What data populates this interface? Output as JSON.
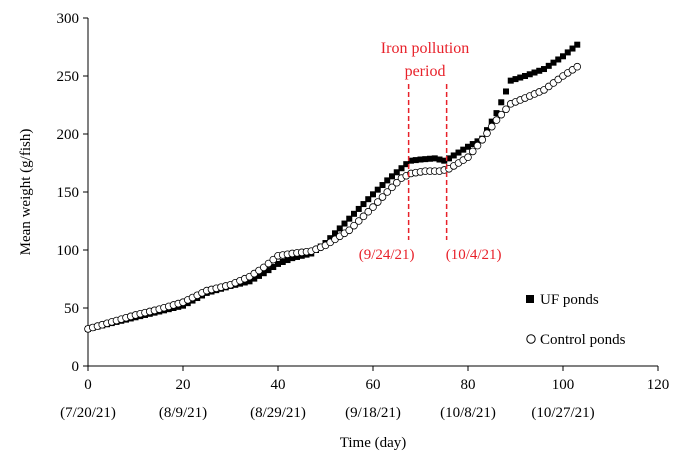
{
  "chart_data": {
    "type": "scatter",
    "xlabel": "Time (day)",
    "ylabel": "Mean weight (g/fish)",
    "xlim": [
      0,
      120
    ],
    "ylim": [
      0,
      300
    ],
    "x_ticks": [
      0,
      20,
      40,
      60,
      80,
      100,
      120
    ],
    "y_ticks": [
      0,
      50,
      100,
      150,
      200,
      250,
      300
    ],
    "x_date_ticks": [
      {
        "x": 0,
        "label": "(7/20/21)"
      },
      {
        "x": 20,
        "label": "(8/9/21)"
      },
      {
        "x": 40,
        "label": "(8/29/21)"
      },
      {
        "x": 60,
        "label": "(9/18/21)"
      },
      {
        "x": 80,
        "label": "(10/8/21)"
      },
      {
        "x": 100,
        "label": "(10/27/21)"
      }
    ],
    "grid": false,
    "legend_position": "bottom-right",
    "colors": {
      "annotation": "#e8212a",
      "series": "#000000"
    },
    "annotations": {
      "period_label_line1": "Iron pollution",
      "period_label_line2": "period",
      "start": {
        "x": 67.5,
        "label": "(9/24/21)"
      },
      "end": {
        "x": 75.5,
        "label": "(10/4/21)"
      }
    },
    "series": [
      {
        "name": "UF ponds",
        "marker": "filled-square",
        "anchors": [
          [
            0,
            32
          ],
          [
            5,
            37
          ],
          [
            10,
            42
          ],
          [
            15,
            47
          ],
          [
            20,
            52
          ],
          [
            25,
            63
          ],
          [
            30,
            69
          ],
          [
            34,
            73
          ],
          [
            37,
            80
          ],
          [
            40,
            88
          ],
          [
            43,
            93
          ],
          [
            47,
            97
          ],
          [
            50,
            106
          ],
          [
            55,
            127
          ],
          [
            60,
            148
          ],
          [
            63,
            160
          ],
          [
            67,
            174
          ],
          [
            68,
            177
          ],
          [
            70,
            178
          ],
          [
            73,
            179
          ],
          [
            75,
            177
          ],
          [
            76,
            179
          ],
          [
            80,
            189
          ],
          [
            83,
            196
          ],
          [
            86,
            218
          ],
          [
            89,
            246
          ],
          [
            92,
            250
          ],
          [
            96,
            256
          ],
          [
            100,
            267
          ],
          [
            103,
            277
          ]
        ],
        "n_points": 104
      },
      {
        "name": "Control ponds",
        "marker": "open-circle",
        "anchors": [
          [
            0,
            32
          ],
          [
            5,
            38
          ],
          [
            10,
            44
          ],
          [
            15,
            49
          ],
          [
            20,
            55
          ],
          [
            25,
            65
          ],
          [
            30,
            70
          ],
          [
            34,
            77
          ],
          [
            37,
            85
          ],
          [
            40,
            95
          ],
          [
            43,
            97
          ],
          [
            47,
            99
          ],
          [
            50,
            104
          ],
          [
            55,
            117
          ],
          [
            60,
            137
          ],
          [
            63,
            150
          ],
          [
            66,
            162
          ],
          [
            68,
            166
          ],
          [
            71,
            168
          ],
          [
            74,
            168
          ],
          [
            76,
            170
          ],
          [
            80,
            180
          ],
          [
            83,
            195
          ],
          [
            86,
            212
          ],
          [
            89,
            226
          ],
          [
            92,
            231
          ],
          [
            96,
            238
          ],
          [
            100,
            250
          ],
          [
            103,
            258
          ]
        ],
        "n_points": 104
      }
    ]
  }
}
